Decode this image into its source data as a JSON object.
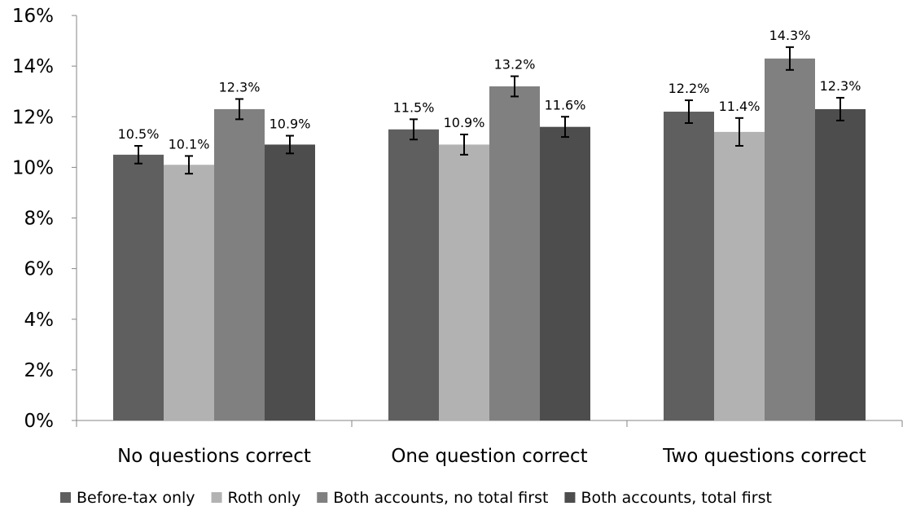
{
  "chart_data": {
    "type": "bar",
    "title": "",
    "xlabel": "",
    "ylabel": "",
    "ylim": [
      0,
      16
    ],
    "y_ticks": [
      "0%",
      "2%",
      "4%",
      "6%",
      "8%",
      "10%",
      "12%",
      "14%",
      "16%"
    ],
    "y_tick_values": [
      0,
      2,
      4,
      6,
      8,
      10,
      12,
      14,
      16
    ],
    "grid": false,
    "legend_position": "bottom",
    "error_bars": true,
    "categories": [
      "No questions correct",
      "One question correct",
      "Two questions correct"
    ],
    "series": [
      {
        "name": "Before-tax only",
        "color": "#5f5f5f",
        "values": [
          10.5,
          11.5,
          12.2
        ],
        "labels": [
          "10.5%",
          "11.5%",
          "12.2%"
        ],
        "error": [
          0.35,
          0.4,
          0.45
        ]
      },
      {
        "name": "Roth only",
        "color": "#b2b2b2",
        "values": [
          10.1,
          10.9,
          11.4
        ],
        "labels": [
          "10.1%",
          "10.9%",
          "11.4%"
        ],
        "error": [
          0.35,
          0.4,
          0.55
        ]
      },
      {
        "name": "Both accounts, no total first",
        "color": "#808080",
        "values": [
          12.3,
          13.2,
          14.3
        ],
        "labels": [
          "12.3%",
          "13.2%",
          "14.3%"
        ],
        "error": [
          0.4,
          0.4,
          0.45
        ]
      },
      {
        "name": "Both accounts, total first",
        "color": "#4d4d4d",
        "values": [
          10.9,
          11.6,
          12.3
        ],
        "labels": [
          "10.9%",
          "11.6%",
          "12.3%"
        ],
        "error": [
          0.35,
          0.4,
          0.45
        ]
      }
    ]
  }
}
